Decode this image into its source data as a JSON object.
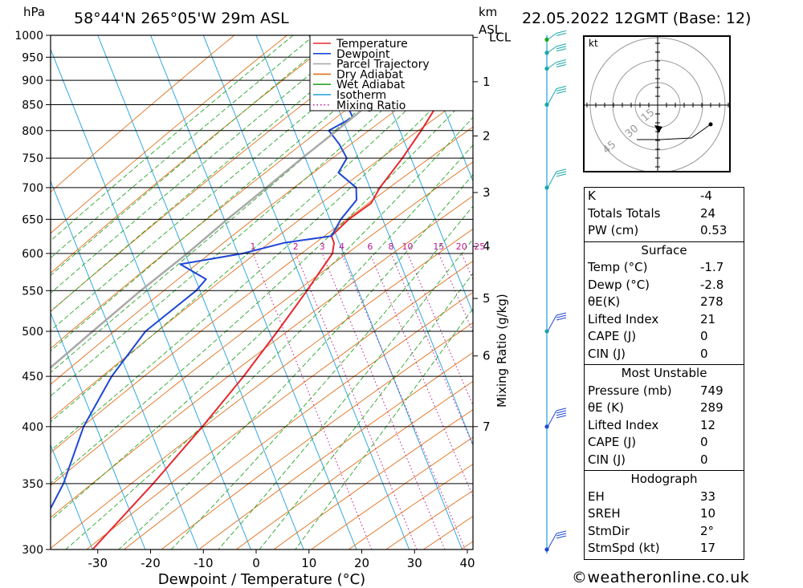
{
  "header": {
    "pressure_unit": "hPa",
    "location": "58°44'N  265°05'W  29m  ASL",
    "km_label": "km",
    "asl_label": "ASL",
    "datetime": "22.05.2022  12GMT  (Base: 12)"
  },
  "legend": {
    "items": [
      {
        "label": "Temperature",
        "color": "#e8282d",
        "style": "solid"
      },
      {
        "label": "Dewpoint",
        "color": "#1f47d6",
        "style": "solid"
      },
      {
        "label": "Parcel Trajectory",
        "color": "#a9a9a9",
        "style": "solid"
      },
      {
        "label": "Dry Adiabat",
        "color": "#e0701c",
        "style": "solid"
      },
      {
        "label": "Wet Adiabat",
        "color": "#2aa52a",
        "style": "solid"
      },
      {
        "label": "Isotherm",
        "color": "#1ea0e0",
        "style": "solid"
      },
      {
        "label": "Mixing Ratio",
        "color": "#c0178f",
        "style": "dotted"
      }
    ]
  },
  "chart_data": {
    "type": "line",
    "subtype": "skew-T log-P",
    "xlabel": "Dewpoint / Temperature (°C)",
    "ylabel": "hPa",
    "xlim": [
      -40,
      40
    ],
    "ylim": [
      1000,
      300
    ],
    "x_ticks": [
      -30,
      -20,
      -10,
      0,
      10,
      20,
      30,
      40
    ],
    "y_ticks": [
      300,
      350,
      400,
      450,
      500,
      550,
      600,
      650,
      700,
      750,
      800,
      850,
      900,
      950,
      1000
    ],
    "km_ticks": [
      {
        "label": "7",
        "p": 400
      },
      {
        "label": "6",
        "p": 472
      },
      {
        "label": "5",
        "p": 540
      },
      {
        "label": "4",
        "p": 610
      },
      {
        "label": "3",
        "p": 692
      },
      {
        "label": "2",
        "p": 790
      },
      {
        "label": "1",
        "p": 897
      },
      {
        "label": "LCL",
        "p": 995
      }
    ],
    "mixing_ratio_label": "Mixing Ratio (g/kg)",
    "mixing_ratio_values": [
      "1",
      "2",
      "3",
      "4",
      "6",
      "8",
      "10",
      "15",
      "20",
      "25"
    ],
    "mixing_ratio_ticks": [
      1,
      2,
      3,
      4,
      6,
      8,
      10,
      15,
      20,
      25
    ],
    "series": [
      {
        "name": "Temperature",
        "color": "#e8282d",
        "points": [
          [
            1000,
            -1.7
          ],
          [
            990,
            -2.0
          ],
          [
            975,
            1.5
          ],
          [
            950,
            2.0
          ],
          [
            925,
            2.2
          ],
          [
            900,
            1.5
          ],
          [
            850,
            0.6
          ],
          [
            800,
            -0.5
          ],
          [
            750,
            -2.0
          ],
          [
            700,
            -4.0
          ],
          [
            675,
            -4.5
          ],
          [
            650,
            -7.5
          ],
          [
            625,
            -9.5
          ],
          [
            615,
            -8.5
          ],
          [
            600,
            -8.0
          ],
          [
            575,
            -9.0
          ],
          [
            550,
            -10.0
          ],
          [
            500,
            -12.5
          ],
          [
            450,
            -15.5
          ],
          [
            400,
            -19.5
          ],
          [
            350,
            -24.5
          ],
          [
            300,
            -31.0
          ]
        ]
      },
      {
        "name": "Dewpoint",
        "color": "#1f47d6",
        "points": [
          [
            1000,
            -2.8
          ],
          [
            995,
            -9.0
          ],
          [
            985,
            -12.5
          ],
          [
            970,
            -10.5
          ],
          [
            950,
            -12.0
          ],
          [
            925,
            -12.5
          ],
          [
            900,
            -14.5
          ],
          [
            880,
            -11.0
          ],
          [
            850,
            -16.5
          ],
          [
            825,
            -14.5
          ],
          [
            800,
            -18.0
          ],
          [
            775,
            -15.0
          ],
          [
            750,
            -12.5
          ],
          [
            725,
            -13.0
          ],
          [
            700,
            -8.5
          ],
          [
            680,
            -7.5
          ],
          [
            650,
            -9.0
          ],
          [
            625,
            -9.5
          ],
          [
            615,
            -18.0
          ],
          [
            600,
            -25.0
          ],
          [
            585,
            -36.0
          ],
          [
            565,
            -30.0
          ],
          [
            550,
            -31.0
          ],
          [
            500,
            -37.5
          ],
          [
            450,
            -40.5
          ],
          [
            400,
            -42.0
          ],
          [
            350,
            -41.5
          ],
          [
            300,
            -43.0
          ]
        ]
      },
      {
        "name": "Parcel Trajectory",
        "color": "#a9a9a9",
        "points": [
          [
            1000,
            -1.7
          ],
          [
            950,
            -5.0
          ],
          [
            900,
            -8.5
          ],
          [
            850,
            -12.5
          ],
          [
            800,
            -16.5
          ],
          [
            750,
            -21.0
          ],
          [
            700,
            -25.5
          ],
          [
            650,
            -30.5
          ],
          [
            600,
            -35.5
          ],
          [
            550,
            -41.5
          ],
          [
            500,
            -47.5
          ],
          [
            450,
            -54.0
          ],
          [
            400,
            -61.5
          ],
          [
            350,
            -70.0
          ],
          [
            300,
            -79.0
          ]
        ]
      }
    ],
    "wind_barbs": [
      {
        "p": 300,
        "speed_kt": 15
      },
      {
        "p": 400,
        "speed_kt": 25
      },
      {
        "p": 500,
        "speed_kt": 15
      },
      {
        "p": 700,
        "speed_kt": 15
      },
      {
        "p": 850,
        "speed_kt": 15
      },
      {
        "p": 925,
        "speed_kt": 15
      },
      {
        "p": 960,
        "speed_kt": 15
      },
      {
        "p": 990,
        "speed_kt": 10
      }
    ]
  },
  "hodograph": {
    "unit": "kt",
    "rings": [
      "15",
      "30",
      "45"
    ]
  },
  "indices": {
    "top": [
      {
        "k": "K",
        "v": "-4"
      },
      {
        "k": "Totals Totals",
        "v": "24"
      },
      {
        "k": "PW (cm)",
        "v": "0.53"
      }
    ],
    "surface": {
      "title": "Surface",
      "rows": [
        {
          "k": "Temp (°C)",
          "v": "-1.7"
        },
        {
          "k": "Dewp (°C)",
          "v": "-2.8"
        },
        {
          "k": "θE(K)",
          "v": "278"
        },
        {
          "k": "Lifted Index",
          "v": "21"
        },
        {
          "k": "CAPE (J)",
          "v": "0"
        },
        {
          "k": "CIN (J)",
          "v": "0"
        }
      ]
    },
    "most_unstable": {
      "title": "Most Unstable",
      "rows": [
        {
          "k": "Pressure (mb)",
          "v": "749"
        },
        {
          "k": "θE (K)",
          "v": "289"
        },
        {
          "k": "Lifted Index",
          "v": "12"
        },
        {
          "k": "CAPE (J)",
          "v": "0"
        },
        {
          "k": "CIN (J)",
          "v": "0"
        }
      ]
    },
    "hodograph": {
      "title": "Hodograph",
      "rows": [
        {
          "k": "EH",
          "v": "33"
        },
        {
          "k": "SREH",
          "v": "10"
        },
        {
          "k": "StmDir",
          "v": "2°"
        },
        {
          "k": "StmSpd (kt)",
          "v": "17"
        }
      ]
    }
  },
  "footer": {
    "copyright": "©weatheronline.co.uk"
  }
}
